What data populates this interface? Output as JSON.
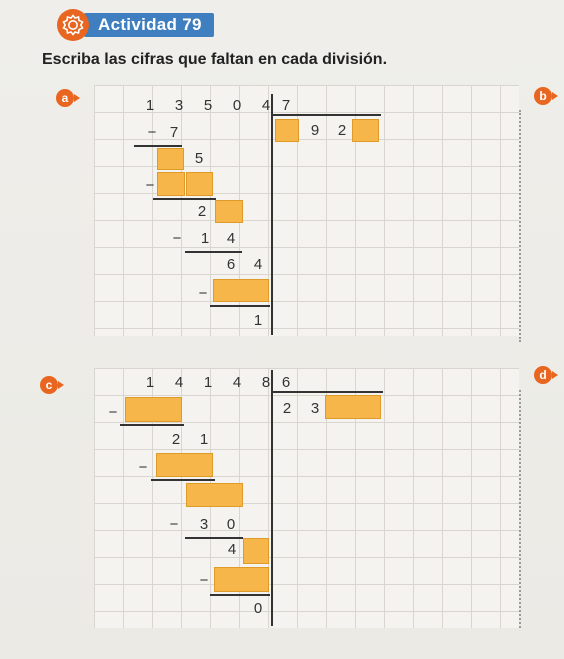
{
  "header": {
    "title": "Actividad 79",
    "icon": "gear-icon",
    "accent": "#3f7fbf"
  },
  "instruction": "Escriba las cifras que faltan en cada división.",
  "labels": {
    "a": "a",
    "b": "b",
    "c": "c",
    "d": "d"
  },
  "box_color": "#f6b64a",
  "divisions": {
    "a": {
      "dividend": [
        "1",
        "3",
        "5",
        "0",
        "4"
      ],
      "divisor": "7",
      "quotient_known": [
        "9",
        "2"
      ],
      "steps": {
        "sub1": "7",
        "row2": "5",
        "row3": "2",
        "sub3": [
          "1",
          "4"
        ],
        "row4": [
          "6",
          "4"
        ],
        "remainder": "1"
      },
      "minus": "−"
    },
    "c": {
      "dividend": [
        "1",
        "4",
        "1",
        "4",
        "8"
      ],
      "divisor": "6",
      "quotient_known": [
        "2",
        "3"
      ],
      "steps": {
        "row2": [
          "2",
          "1"
        ],
        "sub3": [
          "3",
          "0"
        ],
        "row4": "4",
        "remainder": "0"
      },
      "minus": "−"
    }
  }
}
